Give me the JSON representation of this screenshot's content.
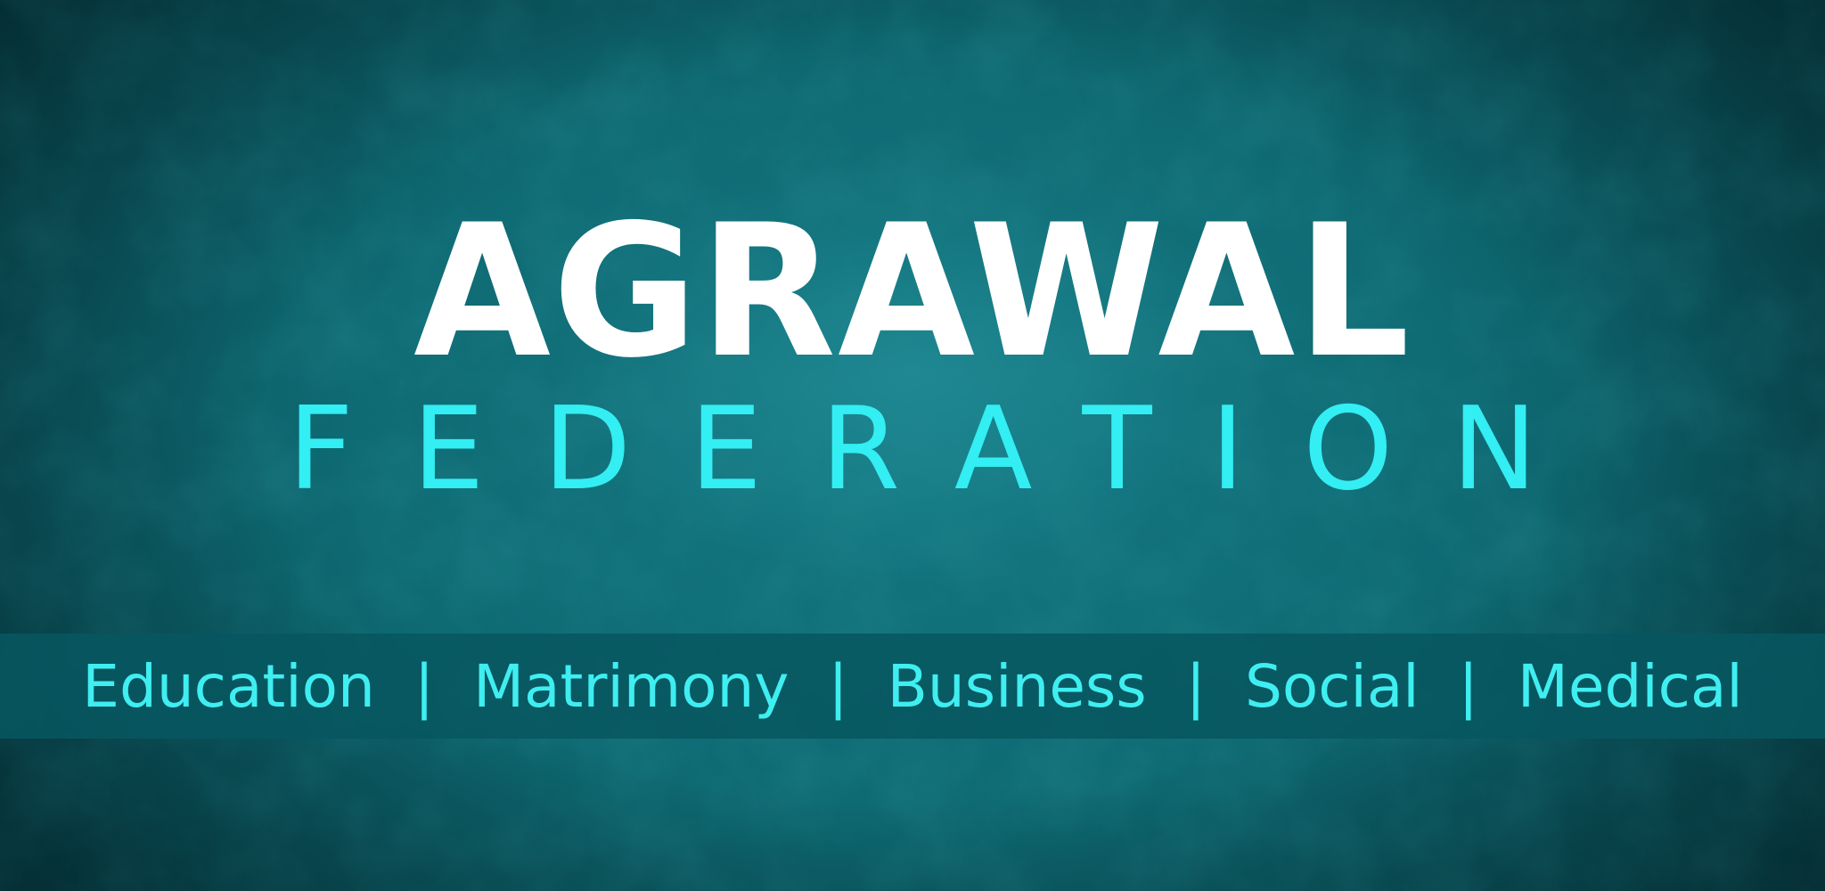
{
  "banner": {
    "title": "AGRAWAL",
    "subtitle": "FEDERATION",
    "categories": [
      "Education",
      "Matrimony",
      "Business",
      "Social",
      "Medical"
    ],
    "separator": "|"
  },
  "colors": {
    "background": "#0e6a73",
    "title": "#ffffff",
    "subtitle": "#33eef3",
    "strip_background": "#075660",
    "strip_text": "#3feef0"
  }
}
